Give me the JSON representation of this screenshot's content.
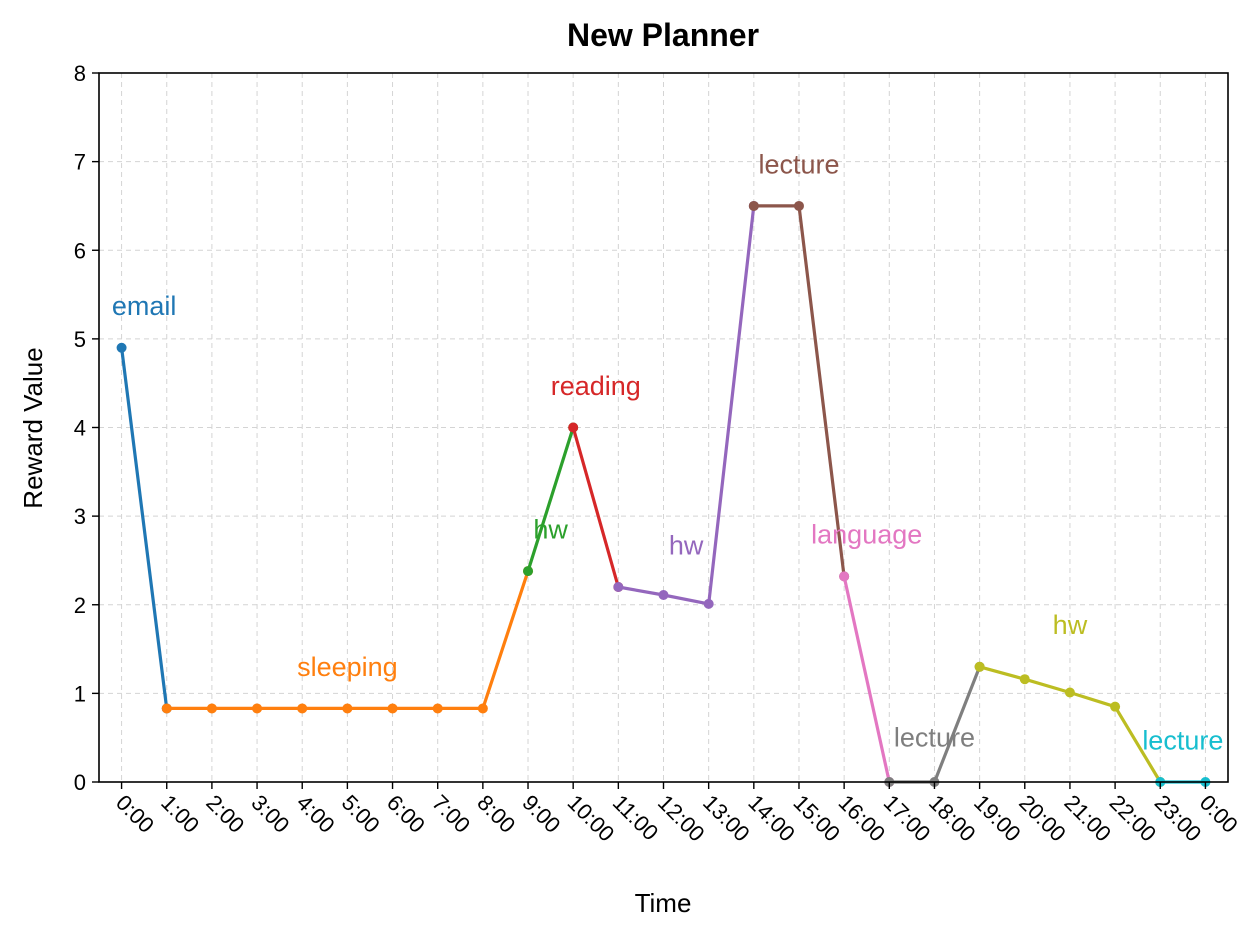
{
  "chart_data": {
    "type": "line",
    "title": "New Planner",
    "xlabel": "Time",
    "ylabel": "Reward Value",
    "ylim": [
      0,
      8
    ],
    "yticks": [
      "0",
      "1",
      "2",
      "3",
      "4",
      "5",
      "6",
      "7",
      "8"
    ],
    "xticks": [
      "0:00",
      "1:00",
      "2:00",
      "3:00",
      "4:00",
      "5:00",
      "6:00",
      "7:00",
      "8:00",
      "9:00",
      "10:00",
      "11:00",
      "12:00",
      "13:00",
      "14:00",
      "15:00",
      "16:00",
      "17:00",
      "18:00",
      "19:00",
      "20:00",
      "21:00",
      "22:00",
      "23:00",
      "0:00"
    ],
    "grid": true,
    "series": [
      {
        "label": "email",
        "color": "#1f77b4",
        "x": [
          0,
          1
        ],
        "y": [
          4.9,
          0.83
        ],
        "label_x": 0.5,
        "label_y": 5.37
      },
      {
        "label": "sleeping",
        "color": "#ff7f0e",
        "x": [
          1,
          2,
          3,
          4,
          5,
          6,
          7,
          8,
          9
        ],
        "y": [
          0.83,
          0.83,
          0.83,
          0.83,
          0.83,
          0.83,
          0.83,
          0.83,
          2.38
        ],
        "label_x": 5.0,
        "label_y": 1.3
      },
      {
        "label": "hw",
        "color": "#2ca02c",
        "x": [
          9,
          10
        ],
        "y": [
          2.38,
          4.0
        ],
        "label_x": 9.5,
        "label_y": 2.85
      },
      {
        "label": "reading",
        "color": "#d62728",
        "x": [
          10,
          11
        ],
        "y": [
          4.0,
          2.2
        ],
        "label_x": 10.5,
        "label_y": 4.47
      },
      {
        "label": "hw",
        "color": "#9467bd",
        "x": [
          11,
          12,
          13,
          14
        ],
        "y": [
          2.2,
          2.11,
          2.01,
          6.5
        ],
        "label_x": 12.5,
        "label_y": 2.67
      },
      {
        "label": "lecture",
        "color": "#8c564b",
        "x": [
          14,
          15,
          16
        ],
        "y": [
          6.5,
          6.5,
          2.32
        ],
        "label_x": 15.0,
        "label_y": 6.97
      },
      {
        "label": "language",
        "color": "#e377c2",
        "x": [
          16,
          17
        ],
        "y": [
          2.32,
          0.0
        ],
        "label_x": 16.5,
        "label_y": 2.79
      },
      {
        "label": "lecture",
        "color": "#7f7f7f",
        "x": [
          17,
          18,
          19
        ],
        "y": [
          0.0,
          0.0,
          1.3
        ],
        "label_x": 18.0,
        "label_y": 0.5
      },
      {
        "label": "hw",
        "color": "#bcbd22",
        "x": [
          19,
          20,
          21,
          22,
          23
        ],
        "y": [
          1.3,
          1.16,
          1.01,
          0.85,
          0.0
        ],
        "label_x": 21.0,
        "label_y": 1.77
      },
      {
        "label": "lecture",
        "color": "#17becf",
        "x": [
          23,
          24
        ],
        "y": [
          0.0,
          0.0
        ],
        "label_x": 23.5,
        "label_y": 0.47
      }
    ]
  }
}
